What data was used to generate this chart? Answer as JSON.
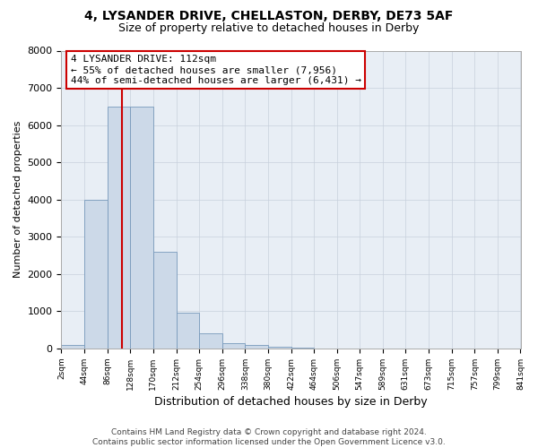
{
  "title1": "4, LYSANDER DRIVE, CHELLASTON, DERBY, DE73 5AF",
  "title2": "Size of property relative to detached houses in Derby",
  "xlabel": "Distribution of detached houses by size in Derby",
  "ylabel": "Number of detached properties",
  "property_size": 112,
  "property_label": "4 LYSANDER DRIVE: 112sqm",
  "annotation_line1": "← 55% of detached houses are smaller (7,956)",
  "annotation_line2": "44% of semi-detached houses are larger (6,431) →",
  "footer1": "Contains HM Land Registry data © Crown copyright and database right 2024.",
  "footer2": "Contains public sector information licensed under the Open Government Licence v3.0.",
  "bin_edges": [
    2,
    44,
    86,
    128,
    170,
    212,
    254,
    296,
    338,
    380,
    422,
    464,
    506,
    547,
    589,
    631,
    673,
    715,
    757,
    799,
    841
  ],
  "bar_heights": [
    100,
    4000,
    6500,
    6500,
    2600,
    950,
    400,
    150,
    100,
    50,
    30,
    10,
    5,
    0,
    0,
    0,
    0,
    0,
    0,
    0
  ],
  "bar_color": "#ccd9e8",
  "bar_edge_color": "#7799bb",
  "vline_color": "#cc0000",
  "annotation_box_edge": "#cc0000",
  "background_color": "#ffffff",
  "plot_bg_color": "#e8eef5",
  "grid_color": "#c8d0dc",
  "ylim": [
    0,
    8000
  ],
  "yticks": [
    0,
    1000,
    2000,
    3000,
    4000,
    5000,
    6000,
    7000,
    8000
  ]
}
